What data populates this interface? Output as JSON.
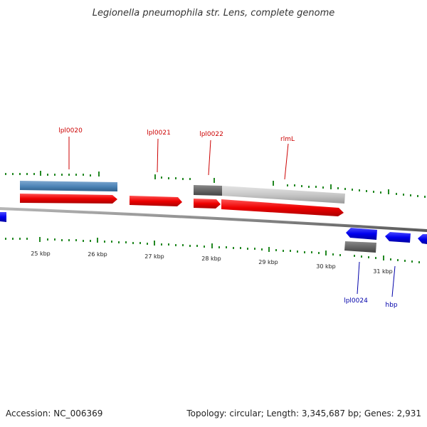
{
  "title": "Legionella pneumophila str. Lens, complete genome",
  "footer": {
    "accession": "Accession: NC_006369",
    "summary": "Topology: circular; Length: 3,345,687 bp; Genes: 2,931"
  },
  "colors": {
    "forward_gene": "#ee0000",
    "reverse_gene": "#0000ee",
    "feature_blue": "#4f86b8",
    "feature_grey_dark": "#666666",
    "feature_grey_light": "#c8c8c8",
    "backbone": "#888888",
    "tick": "#228822",
    "label_forward": "#cc0000",
    "label_reverse": "#0000aa"
  },
  "scale": {
    "unit": "kbp",
    "labels": [
      "25 kbp",
      "26 kbp",
      "27 kbp",
      "28 kbp",
      "29 kbp",
      "30 kbp",
      "31 kbp"
    ]
  },
  "genes": {
    "forward_labels": [
      "lpl0020",
      "lpl0021",
      "lpl0022",
      "rlmL"
    ],
    "reverse_labels": [
      "lpl0024",
      "hbp"
    ]
  }
}
